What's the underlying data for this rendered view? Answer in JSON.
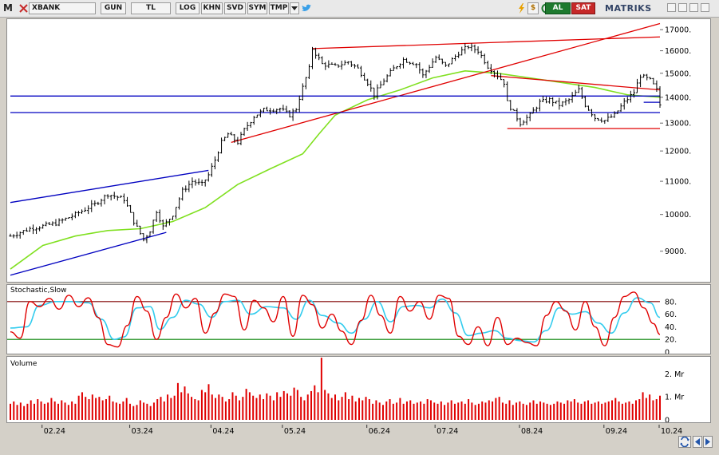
{
  "toolbar": {
    "logo": "M",
    "ticker": "XBANK",
    "period": "GUN",
    "currency": "TL",
    "log": "LOG",
    "khn": "KHN",
    "svd": "SVD",
    "sym": "SYM",
    "tmp": "TMP",
    "dropdown_icon": "triangle-down-icon",
    "social_icon": "twitter-bird-icon",
    "extra_icons": [
      "lightning-icon",
      "dollar-icon",
      "refresh-icon"
    ],
    "buy": "AL",
    "sell": "SAT",
    "brand": "MATRIKS",
    "window_icons": [
      "minimize-icon",
      "maximize-icon",
      "restore-icon",
      "close-icon"
    ]
  },
  "colors": {
    "background": "#ffffff",
    "candles": "#000000",
    "moving_average": "#80e020",
    "trend_red": "#e00000",
    "trend_blue": "#0000c0",
    "stoch_fast": "#e00000",
    "stoch_slow": "#33ccee",
    "stoch_upper": "#800000",
    "stoch_lower": "#008000",
    "volume_bars": "#e00000"
  },
  "chart_data": [
    {
      "type": "ohlc",
      "title": "",
      "ylim": [
        8300,
        17400
      ],
      "y_scale": "log",
      "y_ticks": [
        "17000.",
        "16000.",
        "15000.",
        "14000.",
        "13000.",
        "12000.",
        "11000.",
        "10000.",
        "9000."
      ],
      "x_ticks": [
        "02.24",
        "03.24",
        "04.24",
        "05.24",
        "06.24",
        "07.24",
        "08.24",
        "09.24",
        "10.24"
      ],
      "price_path": [
        [
          0,
          9400
        ],
        [
          6,
          9600
        ],
        [
          14,
          9750
        ],
        [
          20,
          10000
        ],
        [
          26,
          10300
        ],
        [
          30,
          10600
        ],
        [
          35,
          10450
        ],
        [
          38,
          9800
        ],
        [
          41,
          9300
        ],
        [
          43,
          9550
        ],
        [
          45,
          10100
        ],
        [
          47,
          9650
        ],
        [
          50,
          10000
        ],
        [
          53,
          10700
        ],
        [
          56,
          11000
        ],
        [
          59,
          10900
        ],
        [
          61,
          11200
        ],
        [
          63,
          11700
        ],
        [
          65,
          12300
        ],
        [
          67,
          12600
        ],
        [
          70,
          12300
        ],
        [
          72,
          12750
        ],
        [
          75,
          13250
        ],
        [
          78,
          13500
        ],
        [
          83,
          13550
        ],
        [
          86,
          13300
        ],
        [
          88,
          13550
        ],
        [
          90,
          14400
        ],
        [
          92,
          15200
        ],
        [
          93,
          16100
        ],
        [
          96,
          15400
        ],
        [
          100,
          15300
        ],
        [
          104,
          15500
        ],
        [
          107,
          15200
        ],
        [
          110,
          14600
        ],
        [
          112,
          14100
        ],
        [
          115,
          14700
        ],
        [
          118,
          15200
        ],
        [
          121,
          15600
        ],
        [
          125,
          15400
        ],
        [
          127,
          14900
        ],
        [
          131,
          15700
        ],
        [
          134,
          15300
        ],
        [
          138,
          15900
        ],
        [
          141,
          16200
        ],
        [
          144,
          16000
        ],
        [
          147,
          15300
        ],
        [
          150,
          14900
        ],
        [
          152,
          14600
        ],
        [
          153,
          13800
        ],
        [
          155,
          13400
        ],
        [
          157,
          13000
        ],
        [
          160,
          13300
        ],
        [
          163,
          13800
        ],
        [
          166,
          13900
        ],
        [
          169,
          13700
        ],
        [
          172,
          13900
        ],
        [
          175,
          14300
        ],
        [
          177,
          13700
        ],
        [
          180,
          13200
        ],
        [
          183,
          13100
        ],
        [
          186,
          13300
        ],
        [
          189,
          13800
        ],
        [
          192,
          14200
        ],
        [
          194,
          14900
        ],
        [
          197,
          14700
        ],
        [
          199,
          14300
        ],
        [
          200,
          13700
        ]
      ],
      "moving_average": [
        [
          0,
          8550
        ],
        [
          10,
          9150
        ],
        [
          20,
          9400
        ],
        [
          30,
          9550
        ],
        [
          40,
          9600
        ],
        [
          50,
          9800
        ],
        [
          60,
          10200
        ],
        [
          70,
          10900
        ],
        [
          80,
          11400
        ],
        [
          90,
          11900
        ],
        [
          95,
          12600
        ],
        [
          100,
          13300
        ],
        [
          110,
          13900
        ],
        [
          120,
          14300
        ],
        [
          130,
          14800
        ],
        [
          140,
          15100
        ],
        [
          150,
          15000
        ],
        [
          160,
          14800
        ],
        [
          170,
          14600
        ],
        [
          180,
          14400
        ],
        [
          190,
          14100
        ],
        [
          200,
          14000
        ]
      ],
      "trend_lines": [
        {
          "color": "red",
          "from": [
            68,
            12300
          ],
          "to": [
            200,
            17300
          ]
        },
        {
          "color": "red",
          "from": [
            93,
            16100
          ],
          "to": [
            200,
            16650
          ]
        },
        {
          "color": "red",
          "from": [
            148,
            14900
          ],
          "to": [
            200,
            14300
          ]
        },
        {
          "color": "red",
          "from": [
            153,
            12800
          ],
          "to": [
            200,
            12800
          ]
        },
        {
          "color": "blue",
          "from": [
            0,
            10350
          ],
          "to": [
            61,
            11350
          ]
        },
        {
          "color": "blue",
          "from": [
            0,
            8400
          ],
          "to": [
            48,
            9500
          ]
        },
        {
          "color": "blue",
          "from": [
            0,
            14050
          ],
          "to": [
            200,
            14050
          ]
        },
        {
          "color": "blue",
          "from": [
            0,
            13400
          ],
          "to": [
            200,
            13400
          ]
        },
        {
          "color": "blue",
          "from": [
            195,
            13800
          ],
          "to": [
            200,
            13800
          ]
        }
      ]
    },
    {
      "type": "line",
      "title": "Stochastic,Slow",
      "ylim": [
        0,
        100
      ],
      "y_ticks": [
        "80.",
        "60.",
        "40.",
        "20.",
        "0"
      ],
      "levels": [
        80,
        20
      ],
      "series": [
        {
          "values": [
            [
              0,
              32
            ],
            [
              3,
              22
            ],
            [
              6,
              80
            ],
            [
              9,
              72
            ],
            [
              12,
              85
            ],
            [
              15,
              68
            ],
            [
              18,
              90
            ],
            [
              21,
              72
            ],
            [
              24,
              86
            ],
            [
              27,
              55
            ],
            [
              30,
              12
            ],
            [
              33,
              8
            ],
            [
              36,
              42
            ],
            [
              39,
              88
            ],
            [
              42,
              65
            ],
            [
              45,
              20
            ],
            [
              48,
              55
            ],
            [
              51,
              92
            ],
            [
              54,
              70
            ],
            [
              57,
              85
            ],
            [
              60,
              30
            ],
            [
              63,
              62
            ],
            [
              66,
              92
            ],
            [
              69,
              88
            ],
            [
              72,
              35
            ],
            [
              75,
              82
            ],
            [
              78,
              70
            ],
            [
              81,
              48
            ],
            [
              84,
              88
            ],
            [
              87,
              25
            ],
            [
              90,
              90
            ],
            [
              93,
              75
            ],
            [
              96,
              38
            ],
            [
              99,
              60
            ],
            [
              102,
              33
            ],
            [
              105,
              12
            ],
            [
              108,
              50
            ],
            [
              111,
              90
            ],
            [
              114,
              58
            ],
            [
              117,
              30
            ],
            [
              120,
              88
            ],
            [
              123,
              65
            ],
            [
              126,
              80
            ],
            [
              129,
              52
            ],
            [
              132,
              90
            ],
            [
              135,
              85
            ],
            [
              138,
              25
            ],
            [
              141,
              12
            ],
            [
              144,
              40
            ],
            [
              147,
              10
            ],
            [
              150,
              55
            ],
            [
              153,
              12
            ],
            [
              156,
              22
            ],
            [
              159,
              15
            ],
            [
              162,
              10
            ],
            [
              165,
              58
            ],
            [
              168,
              80
            ],
            [
              171,
              65
            ],
            [
              174,
              35
            ],
            [
              177,
              80
            ],
            [
              180,
              40
            ],
            [
              183,
              10
            ],
            [
              186,
              55
            ],
            [
              189,
              88
            ],
            [
              192,
              95
            ],
            [
              195,
              70
            ],
            [
              198,
              45
            ],
            [
              200,
              28
            ]
          ]
        },
        {
          "values": [
            [
              0,
              38
            ],
            [
              5,
              40
            ],
            [
              9,
              74
            ],
            [
              14,
              80
            ],
            [
              19,
              80
            ],
            [
              24,
              78
            ],
            [
              28,
              52
            ],
            [
              32,
              20
            ],
            [
              35,
              24
            ],
            [
              39,
              70
            ],
            [
              43,
              72
            ],
            [
              46,
              36
            ],
            [
              50,
              55
            ],
            [
              54,
              82
            ],
            [
              58,
              76
            ],
            [
              62,
              55
            ],
            [
              66,
              80
            ],
            [
              70,
              82
            ],
            [
              74,
              60
            ],
            [
              79,
              72
            ],
            [
              84,
              70
            ],
            [
              88,
              52
            ],
            [
              92,
              82
            ],
            [
              96,
              58
            ],
            [
              101,
              46
            ],
            [
              105,
              30
            ],
            [
              109,
              52
            ],
            [
              113,
              80
            ],
            [
              117,
              48
            ],
            [
              121,
              72
            ],
            [
              125,
              74
            ],
            [
              129,
              70
            ],
            [
              133,
              84
            ],
            [
              137,
              62
            ],
            [
              141,
              26
            ],
            [
              145,
              30
            ],
            [
              149,
              34
            ],
            [
              153,
              22
            ],
            [
              157,
              18
            ],
            [
              161,
              16
            ],
            [
              165,
              34
            ],
            [
              169,
              70
            ],
            [
              173,
              60
            ],
            [
              177,
              64
            ],
            [
              181,
              46
            ],
            [
              185,
              30
            ],
            [
              189,
              62
            ],
            [
              193,
              86
            ],
            [
              197,
              78
            ],
            [
              200,
              55
            ]
          ]
        }
      ]
    },
    {
      "type": "bar",
      "title": "Volume",
      "ylim": [
        0,
        2600000
      ],
      "y_ticks": [
        "2. Mr",
        "1. Mr",
        "0"
      ],
      "values": [
        0.7,
        0.8,
        0.65,
        0.75,
        0.6,
        0.7,
        0.85,
        0.7,
        0.9,
        0.8,
        0.7,
        0.75,
        0.95,
        0.8,
        0.7,
        0.85,
        0.75,
        0.65,
        0.8,
        0.7,
        1.05,
        1.2,
        1.0,
        0.9,
        1.1,
        0.95,
        1.0,
        0.85,
        0.9,
        1.05,
        0.8,
        0.75,
        0.7,
        0.8,
        0.95,
        0.7,
        0.6,
        0.65,
        0.85,
        0.75,
        0.7,
        0.6,
        0.75,
        0.9,
        1.0,
        0.8,
        1.1,
        0.95,
        1.05,
        1.6,
        1.2,
        1.45,
        1.15,
        1.0,
        0.9,
        0.85,
        1.3,
        1.2,
        1.55,
        1.1,
        0.95,
        1.1,
        1.0,
        0.8,
        0.9,
        1.2,
        1.05,
        0.85,
        1.0,
        1.35,
        1.2,
        1.05,
        0.95,
        1.1,
        0.9,
        1.15,
        1.05,
        0.85,
        1.2,
        1.0,
        1.25,
        1.15,
        1.05,
        1.4,
        1.3,
        1.0,
        0.85,
        1.1,
        1.25,
        1.5,
        1.2,
        2.7,
        1.3,
        1.15,
        0.95,
        1.1,
        0.85,
        1.0,
        1.2,
        0.9,
        1.05,
        0.8,
        0.95,
        0.85,
        1.0,
        0.9,
        0.7,
        0.85,
        0.75,
        0.65,
        0.8,
        0.9,
        0.7,
        0.75,
        0.95,
        0.7,
        0.8,
        0.85,
        0.7,
        0.75,
        0.8,
        0.7,
        0.9,
        0.85,
        0.75,
        0.7,
        0.8,
        0.65,
        0.75,
        0.85,
        0.7,
        0.75,
        0.8,
        0.7,
        0.9,
        0.75,
        0.65,
        0.7,
        0.8,
        0.75,
        0.85,
        0.8,
        0.95,
        1.0,
        0.75,
        0.7,
        0.85,
        0.65,
        0.75,
        0.8,
        0.7,
        0.65,
        0.75,
        0.85,
        0.7,
        0.8,
        0.75,
        0.7,
        0.65,
        0.7,
        0.8,
        0.75,
        0.7,
        0.85,
        0.8,
        0.9,
        0.75,
        0.7,
        0.8,
        0.85,
        0.7,
        0.75,
        0.8,
        0.7,
        0.75,
        0.8,
        0.85,
        0.95,
        0.8,
        0.7,
        0.75,
        0.8,
        0.7,
        0.85,
        0.9,
        1.2,
        0.95,
        1.1,
        0.85,
        0.9,
        1.05
      ],
      "value_unit": "Mr"
    }
  ]
}
